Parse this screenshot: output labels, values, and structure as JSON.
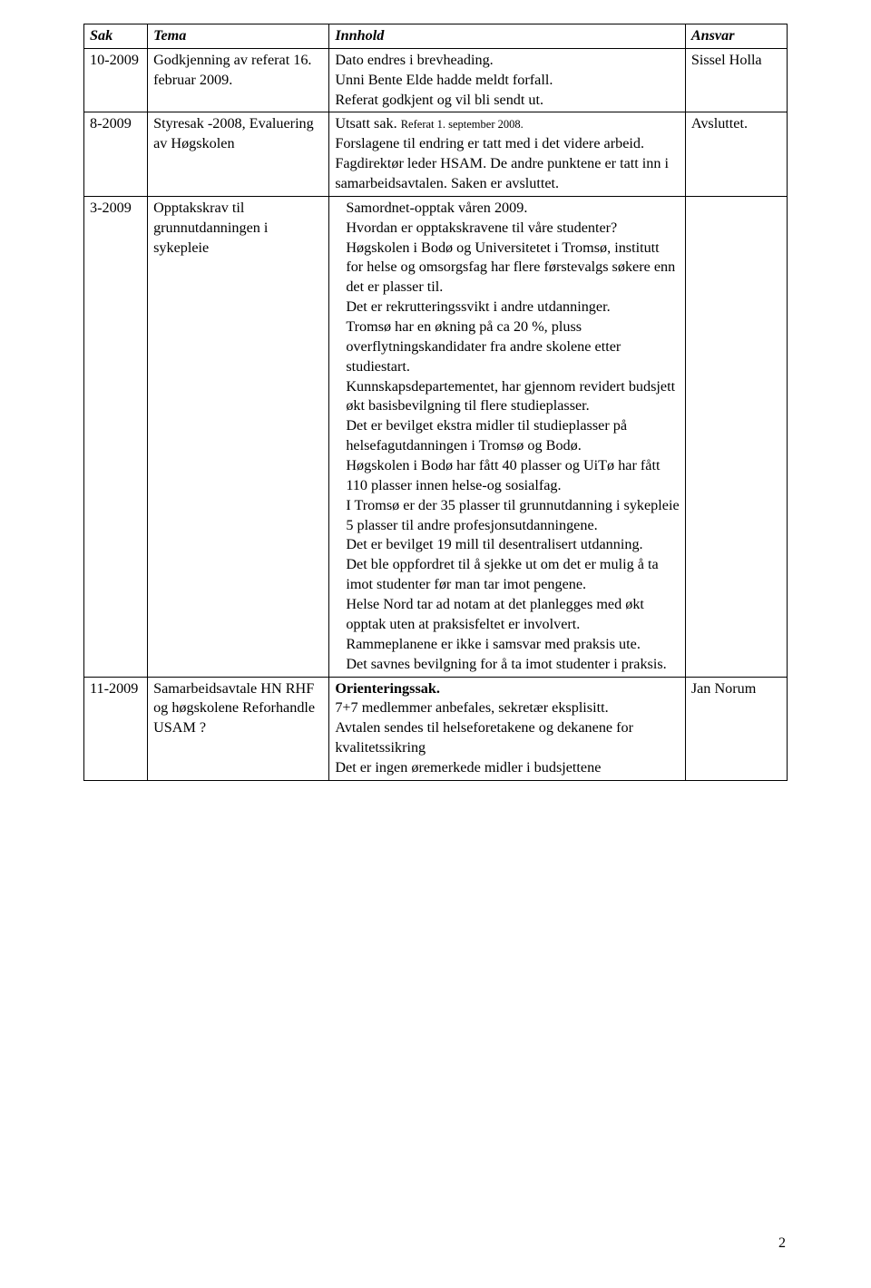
{
  "headers": {
    "sak": "Sak",
    "tema": "Tema",
    "innhold": "Innhold",
    "ansvar": "Ansvar"
  },
  "rows": [
    {
      "sak": "10-2009",
      "tema": "Godkjenning av referat 16. februar 2009.",
      "innhold": "Dato endres i brevheading.\nUnni Bente Elde hadde meldt forfall.\nReferat godkjent og vil bli sendt ut.",
      "ansvar": "Sissel Holla"
    },
    {
      "sak": "8-2009",
      "tema": "Styresak -2008, Evaluering av Høgskolen",
      "innhold_pre": "Utsatt sak. ",
      "innhold_small": "Referat 1. september 2008.",
      "innhold_rest": "\nForslagene til endring er tatt med i det videre arbeid. Fagdirektør leder HSAM. De andre punktene er tatt inn i samarbeidsavtalen. Saken er avsluttet.",
      "ansvar": "Avsluttet."
    },
    {
      "sak": "3-2009",
      "tema": "Opptakskrav til grunnutdanningen i sykepleie",
      "innhold": "Samordnet-opptak våren 2009.\nHvordan er opptakskravene til våre studenter? Høgskolen i Bodø og Universitetet i Tromsø, institutt for helse og omsorgsfag har flere førstevalgs søkere enn det er plasser til.\nDet er rekrutteringssvikt i andre utdanninger.\nTromsø har en økning på ca 20 %, pluss overflytningskandidater fra andre skolene etter studiestart.\nKunnskapsdepartementet, har gjennom revidert budsjett økt basisbevilgning til flere studieplasser.\nDet er bevilget ekstra midler til studieplasser på helsefagutdanningen i Tromsø og Bodø.\nHøgskolen i Bodø har fått 40 plasser og UiTø har fått 110 plasser innen helse-og sosialfag.\nI Tromsø er der 35 plasser til grunnutdanning i sykepleie 5 plasser til andre profesjonsutdanningene.\nDet er bevilget 19 mill til desentralisert utdanning.\nDet ble oppfordret til å sjekke ut om det er mulig å ta imot studenter før man tar imot pengene.\nHelse Nord tar ad notam at det planlegges med økt opptak uten at praksisfeltet er involvert.\nRammeplanene er ikke i samsvar med praksis ute.\nDet savnes bevilgning for å ta imot studenter i praksis.",
      "ansvar": ""
    },
    {
      "sak": "11-2009",
      "tema": "Samarbeidsavtale HN RHF og høgskolene Reforhandle USAM ?",
      "innhold_bold": "Orienteringssak.",
      "innhold_rest": "7+7 medlemmer anbefales, sekretær eksplisitt.\nAvtalen sendes til helseforetakene og dekanene for kvalitetssikring\nDet er ingen øremerkede midler i budsjettene",
      "ansvar": "Jan Norum"
    }
  ],
  "page_number": "2"
}
